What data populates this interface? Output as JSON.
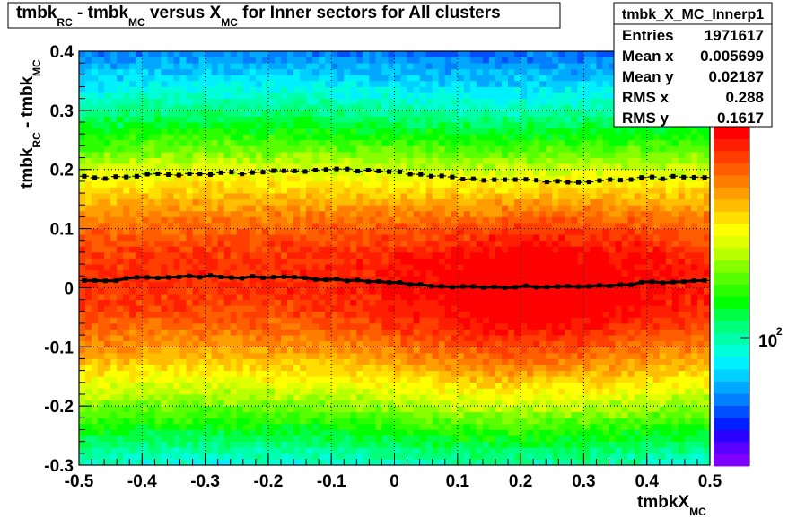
{
  "title": {
    "parts": [
      "tmbk",
      "RC",
      " - tmbk",
      "MC",
      " versus X",
      "MC",
      " for Inner sectors for All clusters"
    ]
  },
  "stats_box": {
    "name": "tmbk_X_MC_Innerp1",
    "rows": [
      {
        "label": "Entries",
        "value": "1971617"
      },
      {
        "label": "Mean x",
        "value": "0.005699"
      },
      {
        "label": "Mean y",
        "value": "0.02187"
      },
      {
        "label": "RMS x",
        "value": "0.288"
      },
      {
        "label": "RMS y",
        "value": "0.1617"
      }
    ]
  },
  "palette": [
    "#8000ff",
    "#5a00ff",
    "#2a00ff",
    "#0020ff",
    "#0050ff",
    "#0080ff",
    "#00a8ff",
    "#00d0ff",
    "#00f0ff",
    "#00ffd8",
    "#00ffaa",
    "#00ff7a",
    "#00ff44",
    "#00ff00",
    "#2cff00",
    "#58ff00",
    "#88ff00",
    "#b8ff00",
    "#e0ff00",
    "#ffff00",
    "#ffde00",
    "#ffbe00",
    "#ff9e00",
    "#ff7e00",
    "#ff5e00",
    "#ff3e00",
    "#ff1e00",
    "#ff0000"
  ],
  "colorbar": {
    "label_base": "10",
    "label_exp": "2"
  },
  "chart_data": {
    "type": "heatmap",
    "xlabel": {
      "main": "tmbkX",
      "sub": "MC"
    },
    "ylabel": {
      "parts": [
        "tmbk",
        "RC",
        " - tmbk",
        "MC"
      ]
    },
    "xlim": [
      -0.5,
      0.5
    ],
    "ylim": [
      -0.3,
      0.4
    ],
    "x_ticks": [
      "-0.5",
      "-0.4",
      "-0.3",
      "-0.2",
      "-0.1",
      "0",
      "0.1",
      "0.2",
      "0.3",
      "0.4",
      "0.5"
    ],
    "y_ticks": [
      "-0.3",
      "-0.2",
      "-0.1",
      "0",
      "0.1",
      "0.2",
      "0.3",
      "0.4"
    ],
    "x_tick_values": [
      -0.5,
      -0.4,
      -0.3,
      -0.2,
      -0.1,
      0,
      0.1,
      0.2,
      0.3,
      0.4,
      0.5
    ],
    "y_tick_values": [
      -0.3,
      -0.2,
      -0.1,
      0,
      0.1,
      0.2,
      0.3,
      0.4
    ],
    "grid": true,
    "z_scale": "log",
    "profile_mean": {
      "x": [
        -0.5,
        -0.45,
        -0.4,
        -0.35,
        -0.3,
        -0.25,
        -0.2,
        -0.15,
        -0.1,
        -0.05,
        0,
        0.05,
        0.1,
        0.15,
        0.2,
        0.25,
        0.3,
        0.35,
        0.4,
        0.45,
        0.5
      ],
      "y": [
        0.01,
        0.013,
        0.016,
        0.018,
        0.019,
        0.018,
        0.017,
        0.016,
        0.014,
        0.011,
        0.008,
        0.005,
        0.002,
        0.0,
        0.001,
        0.003,
        0.003,
        0.005,
        0.008,
        0.01,
        0.011
      ]
    },
    "profile_rms": {
      "x": [
        -0.5,
        -0.45,
        -0.4,
        -0.35,
        -0.3,
        -0.25,
        -0.2,
        -0.15,
        -0.1,
        -0.05,
        0,
        0.05,
        0.1,
        0.15,
        0.2,
        0.25,
        0.3,
        0.35,
        0.4,
        0.45,
        0.5
      ],
      "y": [
        0.188,
        0.186,
        0.19,
        0.192,
        0.193,
        0.194,
        0.196,
        0.198,
        0.2,
        0.199,
        0.196,
        0.19,
        0.185,
        0.183,
        0.182,
        0.18,
        0.18,
        0.182,
        0.185,
        0.187,
        0.188
      ]
    }
  }
}
